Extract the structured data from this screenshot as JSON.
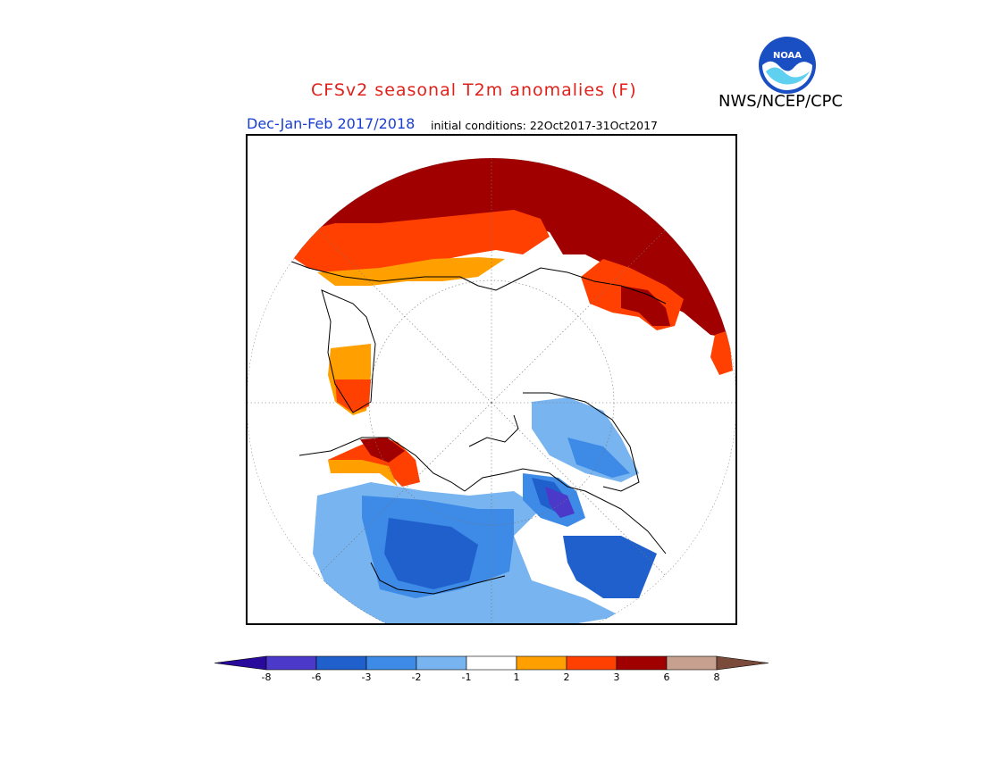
{
  "header": {
    "title": "CFSv2 seasonal T2m anomalies (F)",
    "agency": "NWS/NCEP/CPC",
    "period": "Dec-Jan-Feb 2017/2018",
    "initial_conditions": "initial conditions: 22Oct2017-31Oct2017",
    "logo_text": "NOAA"
  },
  "map": {
    "projection": "north-polar-stereographic",
    "variable": "T2m anomaly",
    "units": "F"
  },
  "legend": {
    "ticks": [
      "-8",
      "-6",
      "-3",
      "-2",
      "-1",
      "1",
      "2",
      "3",
      "6",
      "8"
    ],
    "bins": [
      {
        "range": "< -8",
        "color": "#2a0a9c"
      },
      {
        "range": "-8 to -6",
        "color": "#4b39c9"
      },
      {
        "range": "-6 to -3",
        "color": "#2060cc"
      },
      {
        "range": "-3 to -2",
        "color": "#3d8be6"
      },
      {
        "range": "-2 to -1",
        "color": "#78b4f0"
      },
      {
        "range": "-1 to 1",
        "color": "#ffffff"
      },
      {
        "range": "1 to 2",
        "color": "#ffa000"
      },
      {
        "range": "2 to 3",
        "color": "#ff4000"
      },
      {
        "range": "3 to 6",
        "color": "#a00000"
      },
      {
        "range": "6 to 8",
        "color": "#c8a090"
      },
      {
        "range": "> 8",
        "color": "#7a4a3a"
      }
    ]
  }
}
